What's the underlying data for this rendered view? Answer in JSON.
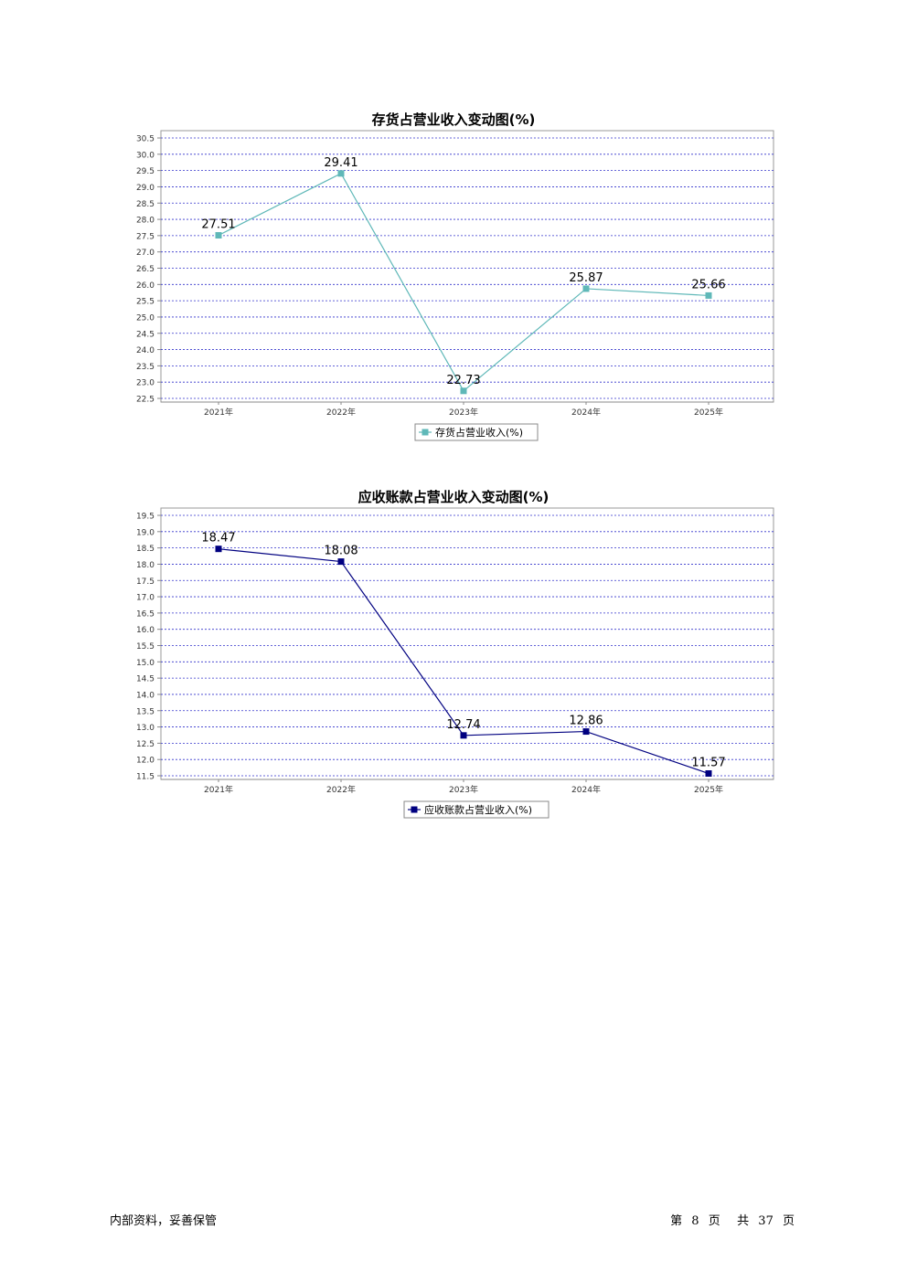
{
  "chart_data": [
    {
      "type": "line",
      "title": "存货占营业收入变动图(%)",
      "categories": [
        "2021年",
        "2022年",
        "2023年",
        "2024年",
        "2025年"
      ],
      "series": [
        {
          "name": "存货占营业收入(%)",
          "values": [
            27.51,
            29.41,
            22.73,
            25.87,
            25.66
          ],
          "color": "#5fb8b8"
        }
      ],
      "data_labels": [
        "27.51",
        "29.41",
        "22.73",
        "25.87",
        "25.66"
      ],
      "ylim": [
        22.5,
        30.5
      ],
      "yticks": [
        "30.5",
        "30.0",
        "29.5",
        "29.0",
        "28.5",
        "28.0",
        "27.5",
        "27.0",
        "26.5",
        "26.0",
        "25.5",
        "25.0",
        "24.5",
        "24.0",
        "23.5",
        "23.0",
        "22.5"
      ],
      "grid": true,
      "legend": "bottom-center"
    },
    {
      "type": "line",
      "title": "应收账款占营业收入变动图(%)",
      "categories": [
        "2021年",
        "2022年",
        "2023年",
        "2024年",
        "2025年"
      ],
      "series": [
        {
          "name": "应收账款占营业收入(%)",
          "values": [
            18.47,
            18.08,
            12.74,
            12.86,
            11.57
          ],
          "color": "#000080"
        }
      ],
      "data_labels": [
        "18.47",
        "18.08",
        "12.74",
        "12.86",
        "11.57"
      ],
      "ylim": [
        11.5,
        19.5
      ],
      "yticks": [
        "19.5",
        "19.0",
        "18.5",
        "18.0",
        "17.5",
        "17.0",
        "16.5",
        "16.0",
        "15.5",
        "15.0",
        "14.5",
        "14.0",
        "13.5",
        "13.0",
        "12.5",
        "12.0",
        "11.5"
      ],
      "grid": true,
      "legend": "bottom-center"
    }
  ],
  "footer": {
    "left": "内部资料，妥善保管",
    "page_prefix": "第",
    "page_number": "8",
    "page_unit": "页",
    "total_prefix": "共",
    "total_pages": "37",
    "total_unit": "页"
  }
}
